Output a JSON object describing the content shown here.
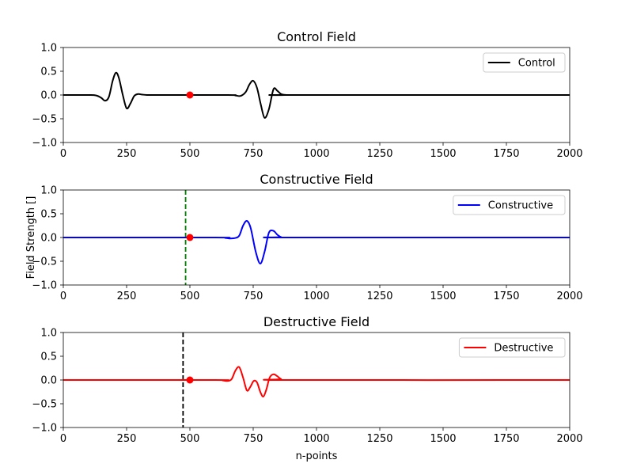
{
  "figure": {
    "xlabel": "n-points",
    "ylabel": "Field Strength []"
  },
  "chart_data": [
    {
      "type": "line",
      "title": "Control Field",
      "xlim": [
        0,
        2000
      ],
      "ylim": [
        -1.0,
        1.0
      ],
      "xticks": [
        "0",
        "250",
        "500",
        "750",
        "1000",
        "1250",
        "1500",
        "1750",
        "2000"
      ],
      "yticks": [
        "1.0",
        "0.5",
        "0.0",
        "−0.5",
        "−1.0"
      ],
      "legend": "upper-right",
      "series": [
        {
          "name": "Control",
          "color": "#000000",
          "x": [
            0,
            100,
            130,
            150,
            165,
            180,
            195,
            208,
            220,
            235,
            250,
            265,
            280,
            295,
            310,
            330,
            360,
            650,
            680,
            700,
            720,
            735,
            750,
            765,
            780,
            795,
            812,
            830,
            845,
            860,
            880,
            900,
            2000
          ],
          "y": [
            0,
            0,
            -0.01,
            -0.06,
            -0.12,
            -0.04,
            0.3,
            0.47,
            0.35,
            0.0,
            -0.28,
            -0.18,
            -0.02,
            0.02,
            0.01,
            0,
            0,
            0,
            -0.01,
            -0.02,
            0.06,
            0.22,
            0.3,
            0.15,
            -0.2,
            -0.48,
            -0.3,
            0.12,
            0.09,
            0.02,
            0,
            0,
            0
          ]
        }
      ],
      "markers": [
        {
          "x": 500,
          "y": 0,
          "color": "#ff0000"
        }
      ],
      "vlines": []
    },
    {
      "type": "line",
      "title": "Constructive Field",
      "xlim": [
        0,
        2000
      ],
      "ylim": [
        -1.0,
        1.0
      ],
      "xticks": [
        "0",
        "250",
        "500",
        "750",
        "1000",
        "1250",
        "1500",
        "1750",
        "2000"
      ],
      "yticks": [
        "1.0",
        "0.5",
        "0.0",
        "−0.5",
        "−1.0"
      ],
      "legend": "upper-right",
      "series": [
        {
          "name": "Constructive",
          "color": "#0000ff",
          "x": [
            0,
            600,
            640,
            660,
            680,
            695,
            710,
            725,
            740,
            760,
            778,
            795,
            812,
            830,
            845,
            860,
            880,
            2000
          ],
          "y": [
            0,
            0,
            -0.01,
            -0.02,
            -0.01,
            0.04,
            0.25,
            0.35,
            0.2,
            -0.3,
            -0.55,
            -0.3,
            0.1,
            0.14,
            0.06,
            0.01,
            0,
            0
          ],
          "vline_color": "#008000"
        }
      ],
      "markers": [
        {
          "x": 500,
          "y": 0,
          "color": "#ff0000"
        }
      ],
      "vlines": [
        {
          "x": 483,
          "color": "#008000",
          "style": "dashed"
        }
      ]
    },
    {
      "type": "line",
      "title": "Destructive Field",
      "xlim": [
        0,
        2000
      ],
      "ylim": [
        -1.0,
        1.0
      ],
      "xticks": [
        "0",
        "250",
        "500",
        "750",
        "1000",
        "1250",
        "1500",
        "1750",
        "2000"
      ],
      "yticks": [
        "1.0",
        "0.5",
        "0.0",
        "−0.5",
        "−1.0"
      ],
      "legend": "upper-right",
      "series": [
        {
          "name": "Destructive",
          "color": "#ff0000",
          "x": [
            0,
            600,
            630,
            650,
            665,
            680,
            695,
            710,
            725,
            738,
            752,
            765,
            778,
            790,
            802,
            815,
            830,
            845,
            860,
            880,
            2000
          ],
          "y": [
            0,
            0,
            -0.01,
            -0.02,
            0.02,
            0.2,
            0.27,
            0.05,
            -0.22,
            -0.15,
            -0.02,
            -0.05,
            -0.25,
            -0.35,
            -0.2,
            0.05,
            0.12,
            0.08,
            0.02,
            0,
            0
          ]
        }
      ],
      "markers": [
        {
          "x": 500,
          "y": 0,
          "color": "#ff0000"
        }
      ],
      "vlines": [
        {
          "x": 473,
          "color": "#000000",
          "style": "dashed"
        }
      ]
    }
  ]
}
